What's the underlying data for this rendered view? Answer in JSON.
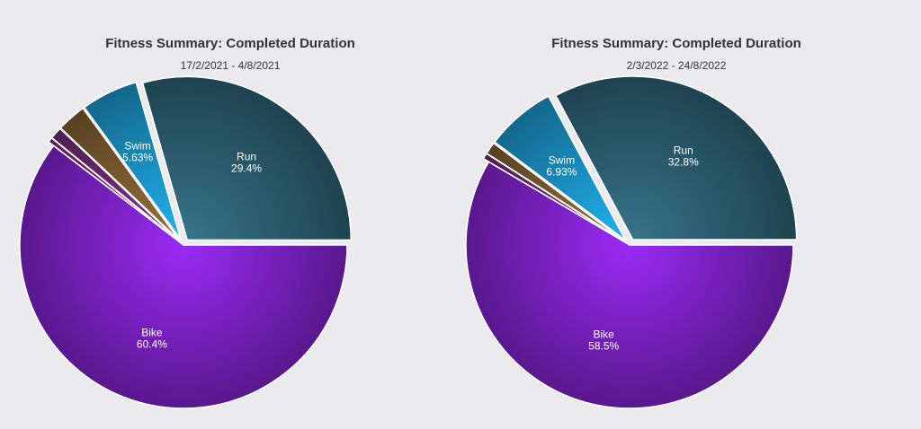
{
  "chart_data": [
    {
      "type": "pie",
      "title": "Fitness Summary: Completed Duration",
      "subtitle": "17/2/2021 - 4/8/2021",
      "slices": [
        {
          "label": "Run",
          "pct_label": "29.4%",
          "value": 29.4,
          "color": "#2b5d6e",
          "labeled": true,
          "exploded": true
        },
        {
          "label": "Swim",
          "pct_label": "5.63%",
          "value": 5.63,
          "color": "#1a8fc1",
          "labeled": true,
          "exploded": true
        },
        {
          "label": "",
          "pct_label": "",
          "value": 2.9,
          "color": "#7a5a2e",
          "labeled": false,
          "exploded": true
        },
        {
          "label": "",
          "pct_label": "",
          "value": 1.2,
          "color": "#6a2a6e",
          "labeled": false,
          "exploded": true
        },
        {
          "label": "",
          "pct_label": "",
          "value": 0.47,
          "color": "#7a2a7a",
          "labeled": false,
          "exploded": true
        },
        {
          "label": "Bike",
          "pct_label": "60.4%",
          "value": 60.4,
          "color": "#7b22c4",
          "labeled": true,
          "exploded": false
        }
      ]
    },
    {
      "type": "pie",
      "title": "Fitness Summary: Completed Duration",
      "subtitle": "2/3/2022 - 24/8/2022",
      "slices": [
        {
          "label": "Run",
          "pct_label": "32.8%",
          "value": 32.8,
          "color": "#2b5d6e",
          "labeled": true,
          "exploded": true
        },
        {
          "label": "Swim",
          "pct_label": "6.93%",
          "value": 6.93,
          "color": "#1a8fc1",
          "labeled": true,
          "exploded": true
        },
        {
          "label": "",
          "pct_label": "",
          "value": 1.2,
          "color": "#7a5a2e",
          "labeled": false,
          "exploded": true
        },
        {
          "label": "",
          "pct_label": "",
          "value": 0.57,
          "color": "#6a2a6e",
          "labeled": false,
          "exploded": true
        },
        {
          "label": "Bike",
          "pct_label": "58.5%",
          "value": 58.5,
          "color": "#7b22c4",
          "labeled": true,
          "exploded": false
        }
      ]
    }
  ]
}
